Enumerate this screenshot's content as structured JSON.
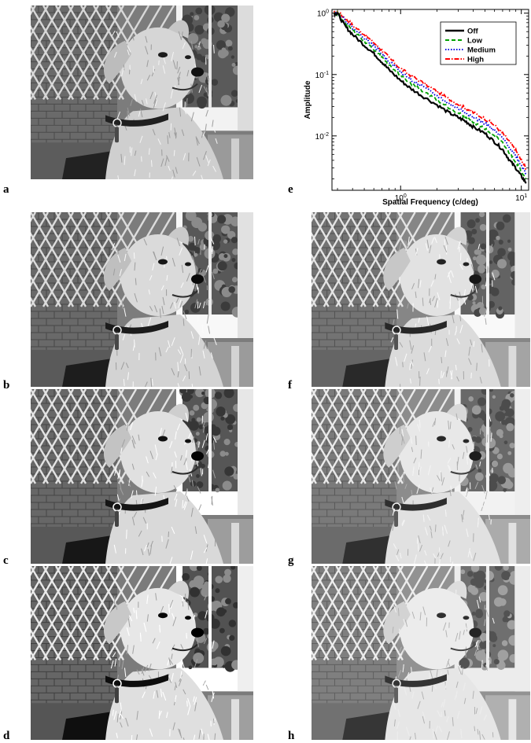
{
  "figure": {
    "panels": [
      {
        "letter": "a",
        "description": "dog-photo-original",
        "filter": "Off"
      },
      {
        "letter": "b",
        "description": "dog-photo-variant",
        "filter": "b"
      },
      {
        "letter": "c",
        "description": "dog-photo-variant",
        "filter": "c"
      },
      {
        "letter": "d",
        "description": "dog-photo-variant",
        "filter": "d"
      },
      {
        "letter": "f",
        "description": "dog-photo-variant",
        "filter": "f"
      },
      {
        "letter": "g",
        "description": "dog-photo-variant",
        "filter": "g"
      },
      {
        "letter": "h",
        "description": "dog-photo-variant",
        "filter": "h"
      }
    ],
    "chart_letter": "e"
  },
  "chart_data": {
    "type": "line",
    "title": "",
    "xlabel": "Spatial Frequency (c/deg)",
    "ylabel": "Amplitude",
    "x_scale": "log",
    "y_scale": "log",
    "xlim": [
      0.27,
      11.5
    ],
    "ylim": [
      0.0013,
      1.15
    ],
    "x_ticks": [
      {
        "value": 1,
        "label": "10^0"
      },
      {
        "value": 10,
        "label": "10^1"
      }
    ],
    "y_ticks": [
      {
        "value": 0.01,
        "label": "10^-2"
      },
      {
        "value": 0.1,
        "label": "10^-1"
      },
      {
        "value": 1,
        "label": "10^0"
      }
    ],
    "legend_position": "top-right",
    "x": [
      0.28,
      0.3,
      0.35,
      0.4,
      0.5,
      0.6,
      0.7,
      0.8,
      1.0,
      1.2,
      1.5,
      2.0,
      2.5,
      3.0,
      3.5,
      4.0,
      5.0,
      6.0,
      7.0,
      8.0,
      9.0,
      10.0,
      11.0
    ],
    "series": [
      {
        "name": "Off",
        "color": "#000000",
        "dash": "solid",
        "values": [
          1.0,
          0.98,
          0.6,
          0.45,
          0.3,
          0.22,
          0.16,
          0.12,
          0.08,
          0.06,
          0.045,
          0.032,
          0.024,
          0.02,
          0.017,
          0.014,
          0.011,
          0.008,
          0.006,
          0.004,
          0.003,
          0.0022,
          0.0017
        ]
      },
      {
        "name": "Low",
        "color": "#00a000",
        "dash": "dashed",
        "values": [
          1.0,
          1.0,
          0.68,
          0.52,
          0.35,
          0.25,
          0.19,
          0.145,
          0.095,
          0.072,
          0.055,
          0.038,
          0.029,
          0.024,
          0.02,
          0.017,
          0.013,
          0.01,
          0.0075,
          0.0052,
          0.0038,
          0.0027,
          0.002
        ]
      },
      {
        "name": "Medium",
        "color": "#0000e0",
        "dash": "dotted",
        "values": [
          1.0,
          1.02,
          0.75,
          0.58,
          0.4,
          0.29,
          0.22,
          0.165,
          0.11,
          0.085,
          0.064,
          0.045,
          0.034,
          0.028,
          0.024,
          0.02,
          0.016,
          0.012,
          0.0092,
          0.0065,
          0.0047,
          0.0033,
          0.0024
        ]
      },
      {
        "name": "High",
        "color": "#ff0000",
        "dash": "dashdot",
        "values": [
          1.0,
          1.04,
          0.82,
          0.64,
          0.45,
          0.33,
          0.25,
          0.19,
          0.125,
          0.098,
          0.075,
          0.053,
          0.04,
          0.033,
          0.028,
          0.024,
          0.019,
          0.015,
          0.011,
          0.008,
          0.0058,
          0.004,
          0.0029
        ]
      }
    ]
  }
}
